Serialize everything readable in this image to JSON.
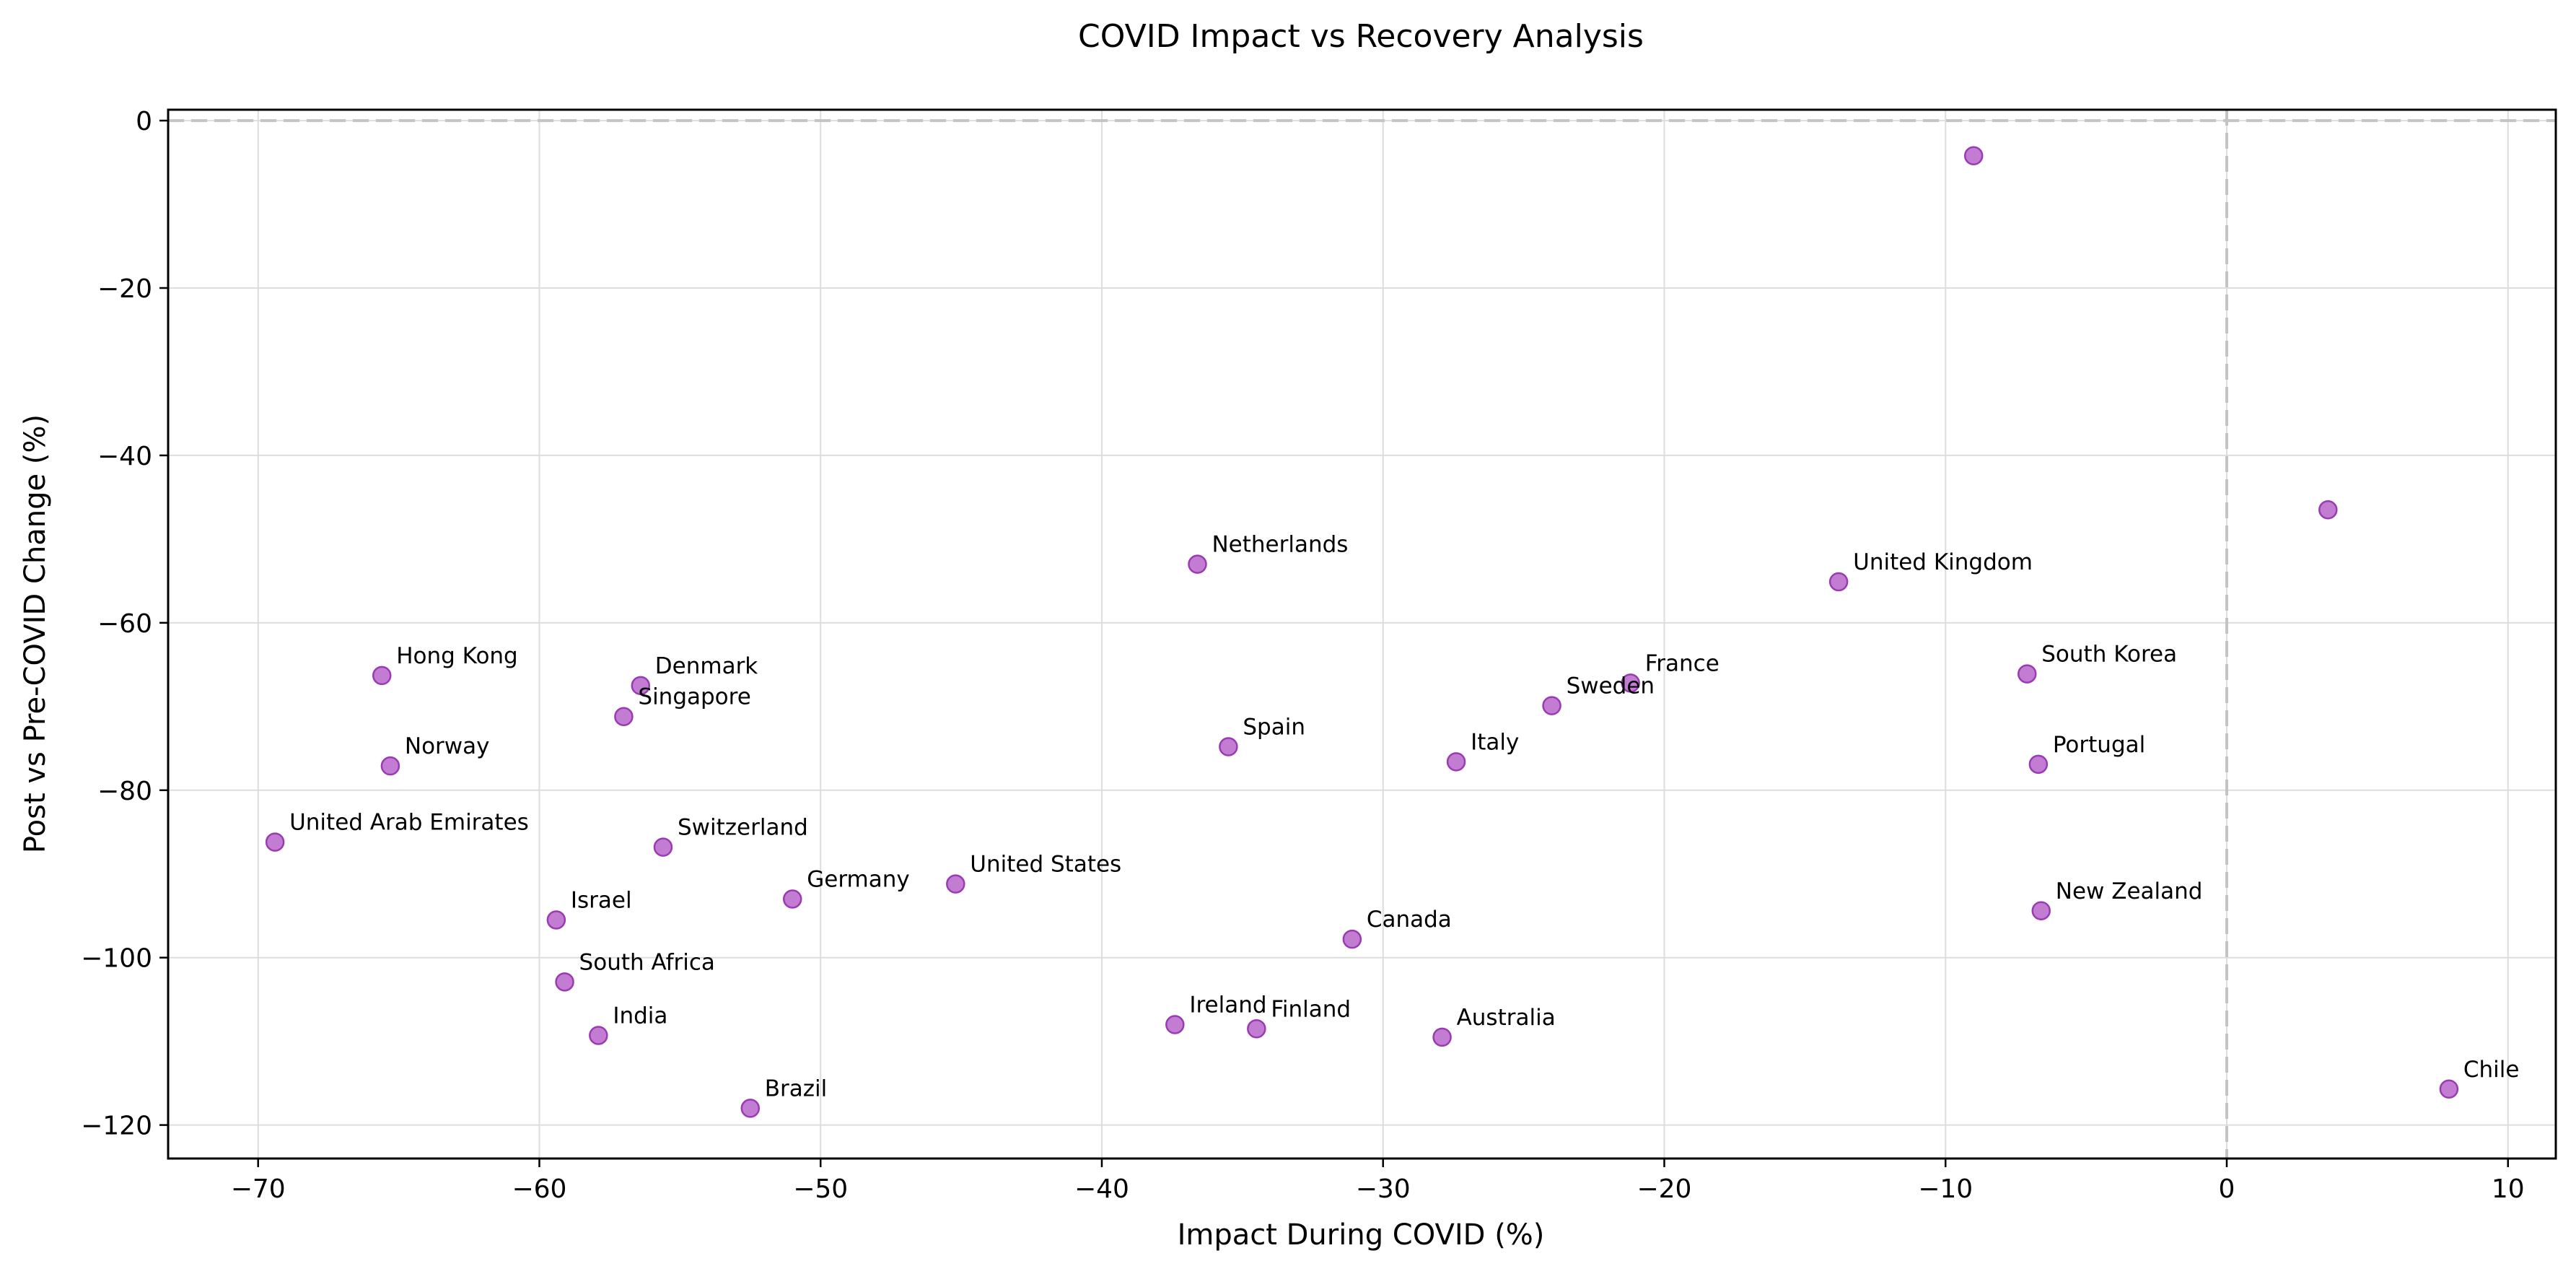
{
  "chart_data": {
    "type": "scatter",
    "title": "COVID Impact vs Recovery Analysis",
    "xlabel": "Impact During COVID (%)",
    "ylabel": "Post vs Pre-COVID Change (%)",
    "xlim": [
      -73.2,
      11.7
    ],
    "ylim": [
      -124.0,
      1.3
    ],
    "xticks": [
      -70,
      -60,
      -50,
      -40,
      -30,
      -20,
      -10,
      0,
      10
    ],
    "yticks": [
      0,
      -20,
      -40,
      -60,
      -80,
      -100,
      -120
    ],
    "xtick_labels": [
      "−70",
      "−60",
      "−50",
      "−40",
      "−30",
      "−20",
      "−10",
      "0",
      "10"
    ],
    "ytick_labels": [
      "0",
      "−20",
      "−40",
      "−60",
      "−80",
      "−100",
      "−120"
    ],
    "grid": true,
    "reference_lines": {
      "x": 0,
      "y": 0
    },
    "marker_color": "#b35cc8",
    "points": [
      {
        "label": "",
        "x": -9.0,
        "y": -4.2
      },
      {
        "label": "",
        "x": 3.6,
        "y": -46.5
      },
      {
        "label": "Netherlands",
        "x": -36.6,
        "y": -53.0
      },
      {
        "label": "United Kingdom",
        "x": -13.8,
        "y": -55.1
      },
      {
        "label": "Hong Kong",
        "x": -65.6,
        "y": -66.3
      },
      {
        "label": "Denmark",
        "x": -56.4,
        "y": -67.5
      },
      {
        "label": "France",
        "x": -21.2,
        "y": -67.2
      },
      {
        "label": "South Korea",
        "x": -7.1,
        "y": -66.1
      },
      {
        "label": "Sweden",
        "x": -24.0,
        "y": -69.9
      },
      {
        "label": "Singapore",
        "x": -57.0,
        "y": -71.2
      },
      {
        "label": "Spain",
        "x": -35.5,
        "y": -74.8
      },
      {
        "label": "Italy",
        "x": -27.4,
        "y": -76.6
      },
      {
        "label": "Norway",
        "x": -65.3,
        "y": -77.1
      },
      {
        "label": "Portugal",
        "x": -6.7,
        "y": -76.9
      },
      {
        "label": "United Arab Emirates",
        "x": -69.4,
        "y": -86.2
      },
      {
        "label": "Switzerland",
        "x": -55.6,
        "y": -86.8
      },
      {
        "label": "United States",
        "x": -45.2,
        "y": -91.2
      },
      {
        "label": "Germany",
        "x": -51.0,
        "y": -93.0
      },
      {
        "label": "New Zealand",
        "x": -6.6,
        "y": -94.4
      },
      {
        "label": "Israel",
        "x": -59.4,
        "y": -95.5
      },
      {
        "label": "Canada",
        "x": -31.1,
        "y": -97.8
      },
      {
        "label": "South Africa",
        "x": -59.1,
        "y": -102.9
      },
      {
        "label": "Ireland",
        "x": -37.4,
        "y": -108.0
      },
      {
        "label": "Finland",
        "x": -34.5,
        "y": -108.5
      },
      {
        "label": "India",
        "x": -57.9,
        "y": -109.3
      },
      {
        "label": "Australia",
        "x": -27.9,
        "y": -109.5
      },
      {
        "label": "Chile",
        "x": 7.9,
        "y": -115.7
      },
      {
        "label": "Brazil",
        "x": -52.5,
        "y": -118.0
      }
    ]
  }
}
